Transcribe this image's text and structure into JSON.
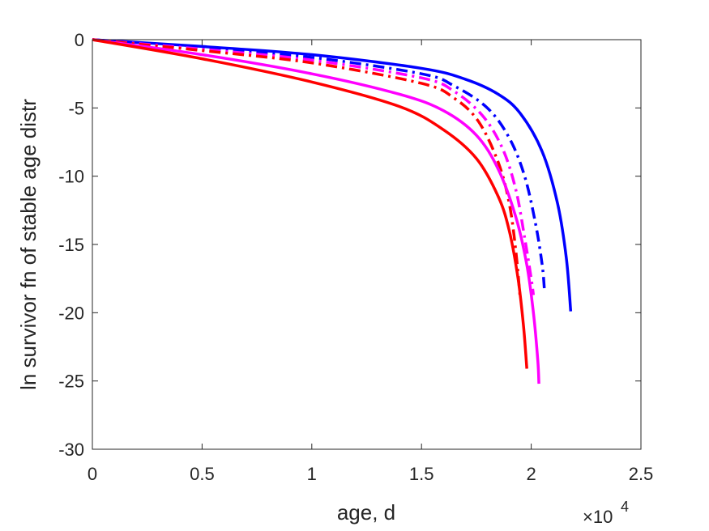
{
  "chart_data": {
    "type": "line",
    "title": "",
    "xlabel": "age, d",
    "ylabel": "ln survivor fn of stable age distr",
    "x_multiplier": "×10",
    "x_multiplier_exponent": "4",
    "xlim": [
      0,
      25000
    ],
    "ylim": [
      -30,
      0
    ],
    "xticks": [
      0,
      5000,
      10000,
      15000,
      20000,
      25000
    ],
    "xtick_labels": [
      "0",
      "0.5",
      "1",
      "1.5",
      "2",
      "2.5"
    ],
    "yticks": [
      0,
      -5,
      -10,
      -15,
      -20,
      -25,
      -30
    ],
    "ytick_labels": [
      "0",
      "-5",
      "-10",
      "-15",
      "-20",
      "-25",
      "-30"
    ],
    "grid": false,
    "legend": "none",
    "series": [
      {
        "color": "#0000ff",
        "style": "solid",
        "x": [
          0,
          5000,
          10000,
          15000,
          17000,
          18500,
          19500,
          20500,
          21200,
          21600,
          21800
        ],
        "y": [
          0,
          -0.5,
          -1.1,
          -2.1,
          -2.9,
          -4.0,
          -5.4,
          -8.2,
          -12.0,
          -16.0,
          -19.9
        ]
      },
      {
        "color": "#0000ff",
        "style": "dashdot",
        "x": [
          0,
          5000,
          10000,
          15000,
          16500,
          18000,
          19000,
          19700,
          20200,
          20500,
          20600
        ],
        "y": [
          0,
          -0.6,
          -1.3,
          -2.5,
          -3.4,
          -5.0,
          -7.2,
          -10.0,
          -13.5,
          -16.5,
          -18.3
        ]
      },
      {
        "color": "#ff00ff",
        "style": "dashdot",
        "x": [
          0,
          5000,
          10000,
          15000,
          16500,
          17800,
          18700,
          19300,
          19700,
          20000,
          20100
        ],
        "y": [
          0,
          -0.7,
          -1.5,
          -2.8,
          -3.8,
          -5.6,
          -8.0,
          -11.0,
          -14.5,
          -17.5,
          -18.7
        ]
      },
      {
        "color": "#ff0000",
        "style": "dashdot",
        "x": [
          0,
          5000,
          10000,
          15000,
          16500,
          17600,
          18500,
          19000,
          19300,
          19500
        ],
        "y": [
          0,
          -0.8,
          -1.7,
          -3.2,
          -4.3,
          -6.0,
          -9.0,
          -12.0,
          -15.5,
          -19.0
        ]
      },
      {
        "color": "#ff00ff",
        "style": "solid",
        "x": [
          0,
          5000,
          10000,
          14000,
          16000,
          17500,
          18500,
          19300,
          19800,
          20100,
          20300,
          20350
        ],
        "y": [
          0,
          -1.1,
          -2.5,
          -4.0,
          -5.2,
          -7.0,
          -9.5,
          -13.0,
          -16.5,
          -20.0,
          -23.5,
          -25.2
        ]
      },
      {
        "color": "#ff0000",
        "style": "solid",
        "x": [
          0,
          5000,
          10000,
          14000,
          16000,
          17500,
          18500,
          19000,
          19400,
          19650,
          19800
        ],
        "y": [
          0,
          -1.4,
          -3.1,
          -4.9,
          -6.6,
          -8.7,
          -11.5,
          -14.0,
          -17.5,
          -21.0,
          -24.1
        ]
      }
    ]
  }
}
